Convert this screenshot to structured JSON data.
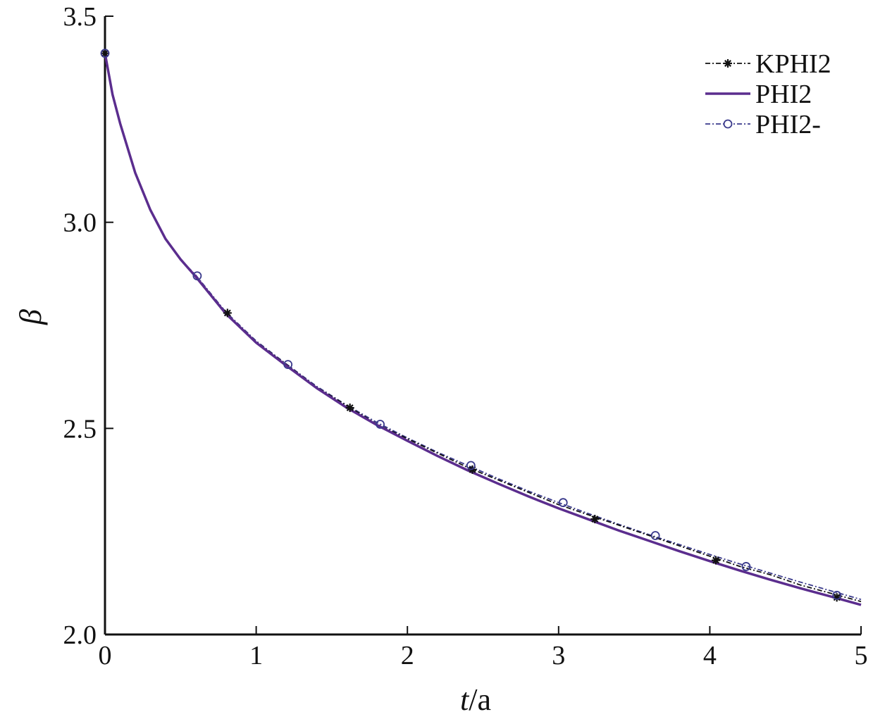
{
  "chart_data": {
    "type": "line",
    "title": "",
    "xlabel_italic": "t",
    "xlabel_rest": "/a",
    "ylabel": "β",
    "xlim": [
      0,
      5
    ],
    "ylim": [
      2.0,
      3.5
    ],
    "xticks": [
      0,
      1,
      2,
      3,
      4,
      5
    ],
    "xtick_labels": [
      "0",
      "1",
      "2",
      "3",
      "4",
      "5"
    ],
    "yticks": [
      2.0,
      2.5,
      3.0,
      3.5
    ],
    "ytick_labels": [
      "2.0",
      "2.5",
      "3.0",
      "3.5"
    ],
    "grid": false,
    "legend_position": "top-right",
    "curve_x": [
      0,
      0.05,
      0.1,
      0.2,
      0.3,
      0.4,
      0.5,
      0.6,
      0.8,
      1.0,
      1.2,
      1.4,
      1.6,
      1.8,
      2.0,
      2.2,
      2.4,
      2.6,
      2.8,
      3.0,
      3.2,
      3.4,
      3.6,
      3.8,
      4.0,
      4.2,
      4.4,
      4.6,
      4.8,
      5.0
    ],
    "series": [
      {
        "name": "KPHI2",
        "color": "#111111",
        "line": "dashdot",
        "marker": "asterisk",
        "values": [
          3.41,
          3.31,
          3.24,
          3.12,
          3.03,
          2.96,
          2.91,
          2.87,
          2.78,
          2.71,
          2.655,
          2.6,
          2.555,
          2.51,
          2.475,
          2.44,
          2.405,
          2.375,
          2.345,
          2.315,
          2.29,
          2.265,
          2.24,
          2.215,
          2.19,
          2.165,
          2.145,
          2.12,
          2.1,
          2.08
        ],
        "marker_x": [
          0,
          0.81,
          1.62,
          2.43,
          3.24,
          4.04,
          4.84
        ],
        "marker_y": [
          3.41,
          2.78,
          2.55,
          2.4,
          2.28,
          2.18,
          2.09
        ]
      },
      {
        "name": "PHI2",
        "color": "#5b2d8e",
        "line": "solid",
        "marker": "none",
        "values": [
          3.41,
          3.31,
          3.24,
          3.12,
          3.03,
          2.96,
          2.91,
          2.868,
          2.778,
          2.708,
          2.652,
          2.598,
          2.55,
          2.508,
          2.47,
          2.433,
          2.398,
          2.366,
          2.335,
          2.306,
          2.279,
          2.252,
          2.227,
          2.202,
          2.178,
          2.155,
          2.133,
          2.112,
          2.092,
          2.072
        ]
      },
      {
        "name": "PHI2-",
        "color": "#3a3a8c",
        "line": "dashdot",
        "marker": "circle",
        "values": [
          3.41,
          3.31,
          3.24,
          3.12,
          3.03,
          2.96,
          2.91,
          2.872,
          2.782,
          2.712,
          2.656,
          2.602,
          2.556,
          2.514,
          2.477,
          2.442,
          2.41,
          2.378,
          2.348,
          2.32,
          2.293,
          2.267,
          2.242,
          2.218,
          2.194,
          2.171,
          2.149,
          2.127,
          2.106,
          2.085
        ],
        "marker_x": [
          0,
          0.61,
          1.21,
          1.82,
          2.42,
          3.03,
          3.64,
          4.24,
          4.84
        ],
        "marker_y": [
          3.41,
          2.87,
          2.655,
          2.51,
          2.41,
          2.32,
          2.24,
          2.165,
          2.095
        ]
      }
    ]
  }
}
